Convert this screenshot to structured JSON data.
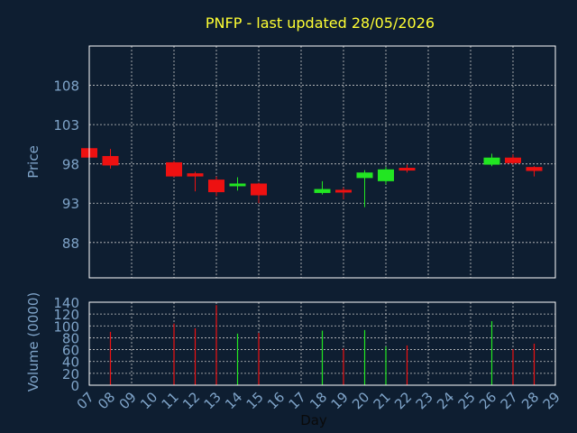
{
  "title": "PNFP - last updated 28/05/2026",
  "colors": {
    "background": "#0e1e31",
    "title": "#ffff33",
    "axis_text": "#7fa4c9",
    "frame": "#ffffff",
    "grid": "#c8c8c8",
    "up": "#22e622",
    "down": "#ee1111"
  },
  "chart_data": [
    {
      "type": "candlestick",
      "ylabel": "Price",
      "ylim": [
        83.5,
        113.0
      ],
      "yticks": [
        88,
        93,
        98,
        103,
        108
      ],
      "xlim": [
        7,
        29
      ],
      "grid": true,
      "candles": [
        {
          "day": 7,
          "open": 100.0,
          "high": 100.0,
          "low": 98.6,
          "close": 98.8
        },
        {
          "day": 8,
          "open": 99.0,
          "high": 99.9,
          "low": 97.4,
          "close": 97.8
        },
        {
          "day": 11,
          "open": 98.2,
          "high": 98.4,
          "low": 96.3,
          "close": 96.4
        },
        {
          "day": 12,
          "open": 96.8,
          "high": 97.0,
          "low": 94.5,
          "close": 96.4
        },
        {
          "day": 13,
          "open": 96.0,
          "high": 96.4,
          "low": 93.9,
          "close": 94.4
        },
        {
          "day": 14,
          "open": 95.2,
          "high": 96.3,
          "low": 94.6,
          "close": 95.5
        },
        {
          "day": 15,
          "open": 95.5,
          "high": 95.6,
          "low": 93.0,
          "close": 94.0
        },
        {
          "day": 18,
          "open": 94.3,
          "high": 95.8,
          "low": 94.1,
          "close": 94.8
        },
        {
          "day": 19,
          "open": 94.7,
          "high": 95.0,
          "low": 93.5,
          "close": 94.5
        },
        {
          "day": 20,
          "open": 96.2,
          "high": 97.2,
          "low": 92.5,
          "close": 96.9
        },
        {
          "day": 21,
          "open": 95.8,
          "high": 97.6,
          "low": 95.4,
          "close": 97.3
        },
        {
          "day": 22,
          "open": 97.5,
          "high": 97.9,
          "low": 96.9,
          "close": 97.2
        },
        {
          "day": 26,
          "open": 97.9,
          "high": 99.3,
          "low": 97.7,
          "close": 98.8
        },
        {
          "day": 27,
          "open": 98.8,
          "high": 99.2,
          "low": 97.9,
          "close": 98.1
        },
        {
          "day": 28,
          "open": 97.6,
          "high": 97.7,
          "low": 96.4,
          "close": 97.1
        }
      ]
    },
    {
      "type": "bar",
      "ylabel": "Volume (0000)",
      "xlabel": "Day",
      "ylim": [
        0,
        140
      ],
      "yticks": [
        0,
        20,
        40,
        60,
        80,
        100,
        120,
        140
      ],
      "xticks": [
        "07",
        "08",
        "09",
        "10",
        "11",
        "12",
        "13",
        "14",
        "15",
        "16",
        "17",
        "18",
        "19",
        "20",
        "21",
        "22",
        "23",
        "24",
        "25",
        "26",
        "27",
        "28",
        "29"
      ],
      "grid": true,
      "bars": [
        {
          "day": 7,
          "value": 0,
          "direction": "down"
        },
        {
          "day": 8,
          "value": 90,
          "direction": "down"
        },
        {
          "day": 11,
          "value": 104,
          "direction": "down"
        },
        {
          "day": 12,
          "value": 96,
          "direction": "down"
        },
        {
          "day": 13,
          "value": 135,
          "direction": "down"
        },
        {
          "day": 14,
          "value": 87,
          "direction": "up"
        },
        {
          "day": 15,
          "value": 88,
          "direction": "down"
        },
        {
          "day": 18,
          "value": 92,
          "direction": "up"
        },
        {
          "day": 19,
          "value": 62,
          "direction": "down"
        },
        {
          "day": 20,
          "value": 93,
          "direction": "up"
        },
        {
          "day": 21,
          "value": 65,
          "direction": "up"
        },
        {
          "day": 22,
          "value": 67,
          "direction": "down"
        },
        {
          "day": 26,
          "value": 108,
          "direction": "up"
        },
        {
          "day": 27,
          "value": 61,
          "direction": "down"
        },
        {
          "day": 28,
          "value": 70,
          "direction": "down"
        }
      ]
    }
  ]
}
